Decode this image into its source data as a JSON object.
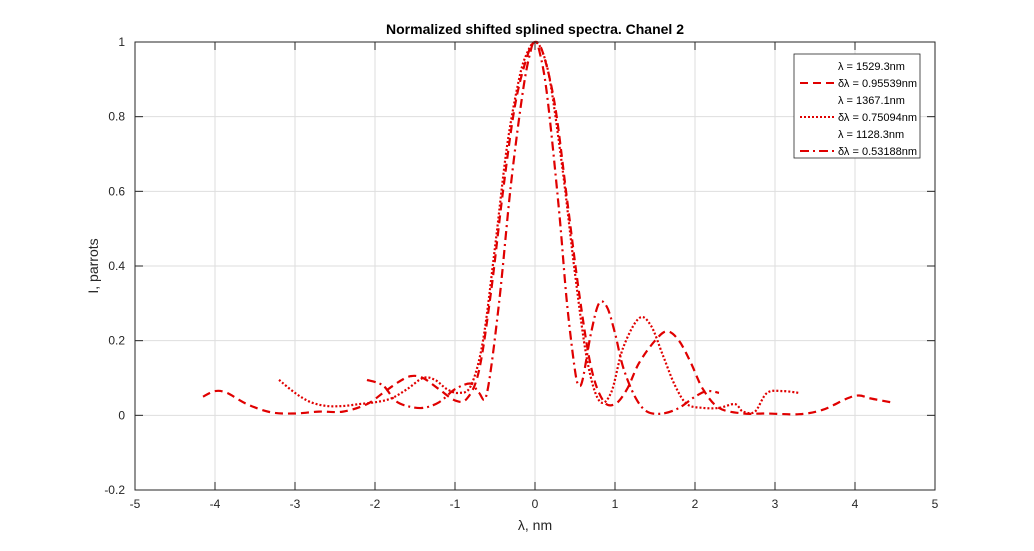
{
  "chart_data": {
    "type": "line",
    "title": "Normalized shifted splined spectra. Chanel 2",
    "xlabel": "λ, nm",
    "ylabel": "I, parrots",
    "xlim": [
      -5,
      5
    ],
    "ylim": [
      -0.2,
      1
    ],
    "xticks": [
      -5,
      -4,
      -3,
      -2,
      -1,
      0,
      1,
      2,
      3,
      4,
      5
    ],
    "yticks": [
      -0.2,
      0,
      0.2,
      0.4,
      0.6,
      0.8,
      1
    ],
    "xtick_labels": [
      "-5",
      "-4",
      "-3",
      "-2",
      "-1",
      "0",
      "1",
      "2",
      "3",
      "4",
      "5"
    ],
    "ytick_labels": [
      "-0.2",
      "0",
      "0.2",
      "0.4",
      "0.6",
      "0.8",
      "1"
    ],
    "grid": true,
    "legend_position": "top-right",
    "line_color": "#e00000",
    "legend": [
      {
        "text": "λ = 1529.3nm",
        "marker": "none"
      },
      {
        "text": "δλ = 0.95539nm",
        "marker": "dashed"
      },
      {
        "text": "λ = 1367.1nm",
        "marker": "none"
      },
      {
        "text": "δλ = 0.75094nm",
        "marker": "dotted"
      },
      {
        "text": "λ = 1128.3nm",
        "marker": "none"
      },
      {
        "text": "δλ = 0.53188nm",
        "marker": "dashdot"
      }
    ],
    "series": [
      {
        "style": "dashed",
        "x": [
          -4.15,
          -4.0,
          -3.85,
          -3.6,
          -3.3,
          -3.0,
          -2.7,
          -2.4,
          -2.1,
          -1.9,
          -1.7,
          -1.55,
          -1.4,
          -1.2,
          -1.0,
          -0.85,
          -0.7,
          -0.55,
          -0.4,
          -0.25,
          -0.1,
          0.0,
          0.1,
          0.25,
          0.4,
          0.55,
          0.7,
          0.85,
          1.0,
          1.15,
          1.3,
          1.5,
          1.65,
          1.8,
          1.95,
          2.1,
          2.3,
          2.6,
          2.9,
          3.3,
          3.6,
          3.9,
          4.05,
          4.2,
          4.45
        ],
        "y": [
          0.05,
          0.065,
          0.06,
          0.03,
          0.008,
          0.005,
          0.01,
          0.01,
          0.03,
          0.06,
          0.09,
          0.105,
          0.1,
          0.07,
          0.04,
          0.045,
          0.12,
          0.33,
          0.6,
          0.83,
          0.96,
          1.0,
          0.97,
          0.83,
          0.58,
          0.33,
          0.13,
          0.04,
          0.03,
          0.07,
          0.14,
          0.2,
          0.225,
          0.2,
          0.14,
          0.07,
          0.02,
          0.005,
          0.005,
          0.003,
          0.015,
          0.045,
          0.053,
          0.045,
          0.035
        ]
      },
      {
        "style": "dotted",
        "x": [
          -3.2,
          -3.0,
          -2.8,
          -2.6,
          -2.4,
          -2.2,
          -2.0,
          -1.8,
          -1.6,
          -1.4,
          -1.25,
          -1.1,
          -0.95,
          -0.8,
          -0.65,
          -0.5,
          -0.35,
          -0.2,
          -0.1,
          0.0,
          0.1,
          0.2,
          0.35,
          0.5,
          0.65,
          0.8,
          0.95,
          1.1,
          1.3,
          1.45,
          1.6,
          1.75,
          1.9,
          2.1,
          2.3,
          2.5,
          2.6,
          2.75,
          2.9,
          3.1,
          3.3
        ],
        "y": [
          0.095,
          0.06,
          0.035,
          0.025,
          0.025,
          0.03,
          0.035,
          0.045,
          0.07,
          0.1,
          0.095,
          0.07,
          0.06,
          0.08,
          0.2,
          0.45,
          0.72,
          0.9,
          0.97,
          1.0,
          0.97,
          0.88,
          0.65,
          0.38,
          0.15,
          0.04,
          0.06,
          0.18,
          0.26,
          0.24,
          0.16,
          0.08,
          0.03,
          0.02,
          0.02,
          0.03,
          0.01,
          0.01,
          0.06,
          0.065,
          0.06
        ]
      },
      {
        "style": "dashdot",
        "x": [
          -2.1,
          -1.9,
          -1.75,
          -1.6,
          -1.4,
          -1.2,
          -1.0,
          -0.8,
          -0.7,
          -0.6,
          -0.45,
          -0.3,
          -0.15,
          -0.05,
          0.0,
          0.05,
          0.15,
          0.3,
          0.4,
          0.5,
          0.55,
          0.6,
          0.7,
          0.8,
          0.9,
          1.0,
          1.1,
          1.25,
          1.4,
          1.6,
          1.8,
          2.0,
          2.15,
          2.3
        ],
        "y": [
          0.095,
          0.08,
          0.04,
          0.025,
          0.02,
          0.035,
          0.07,
          0.085,
          0.06,
          0.06,
          0.3,
          0.62,
          0.87,
          0.98,
          1.0,
          0.98,
          0.86,
          0.55,
          0.3,
          0.12,
          0.08,
          0.1,
          0.22,
          0.3,
          0.29,
          0.22,
          0.13,
          0.05,
          0.01,
          0.005,
          0.02,
          0.05,
          0.065,
          0.06
        ]
      }
    ]
  }
}
